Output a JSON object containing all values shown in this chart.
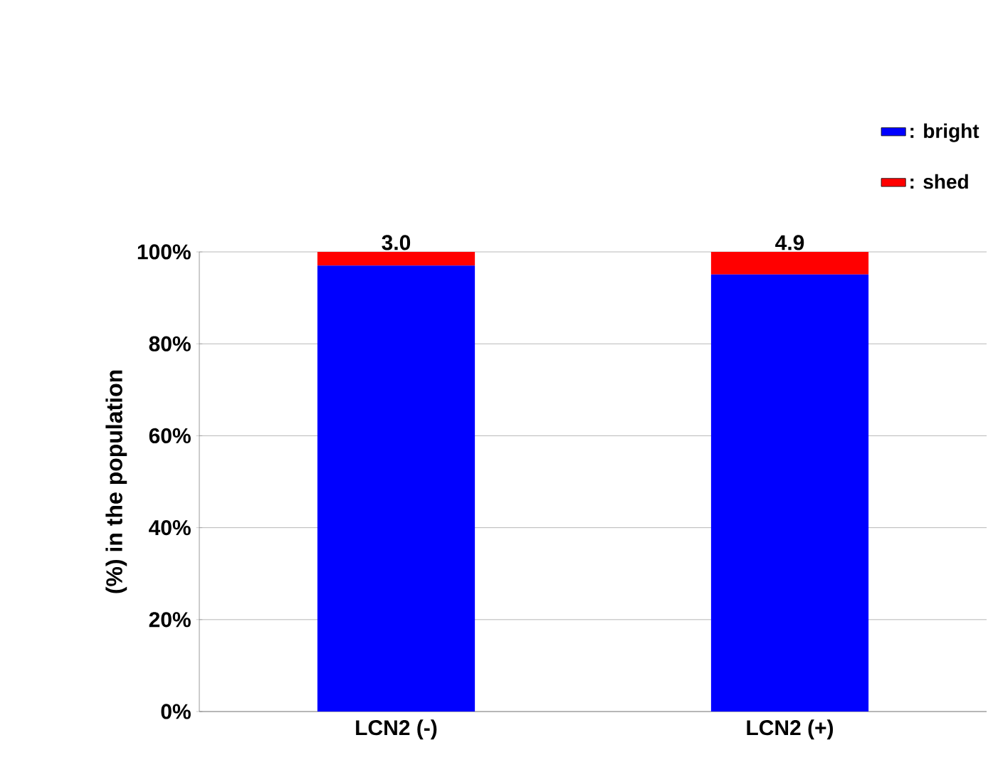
{
  "chart_data": {
    "type": "bar",
    "stacked": true,
    "ylabel": "(%) in the population",
    "categories": [
      "LCN2 (-)",
      "LCN2 (+)"
    ],
    "series": [
      {
        "name": ": bright",
        "color": "#0000ff",
        "values": [
          97.0,
          95.1
        ]
      },
      {
        "name": ": shed",
        "color": "#ff0000",
        "values": [
          3.0,
          4.9
        ],
        "value_labels": [
          "3.0",
          "4.9"
        ]
      }
    ],
    "ylim": [
      0,
      100
    ],
    "yticks": [
      {
        "value": 0,
        "label": "0%"
      },
      {
        "value": 20,
        "label": "20%"
      },
      {
        "value": 40,
        "label": "40%"
      },
      {
        "value": 60,
        "label": "60%"
      },
      {
        "value": 80,
        "label": "80%"
      },
      {
        "value": 100,
        "label": "100%"
      }
    ],
    "grid": "y",
    "legend": "top right"
  }
}
